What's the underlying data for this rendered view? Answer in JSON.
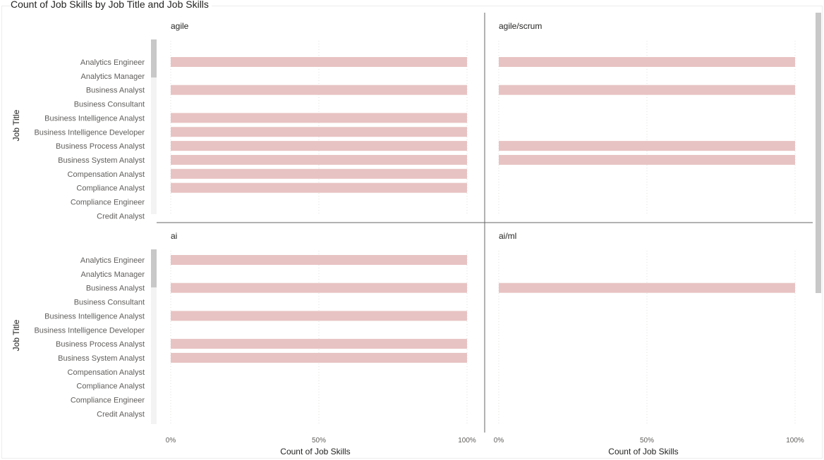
{
  "title": "Count of Job Skills by Job Title and Job Skills",
  "colors": {
    "bar": "#e8c3c3",
    "divider": "#666666",
    "text": "#252423",
    "axis_text": "#605e5c",
    "gridline": "#e1dfdd",
    "scroll_track": "#f3f3f3",
    "scroll_thumb": "#c8c8c8"
  },
  "chart_data": {
    "type": "bar",
    "orientation": "horizontal",
    "layout": "small-multiples-2x2",
    "categories": [
      "Analytics Engineer",
      "Analytics Manager",
      "Business Analyst",
      "Business Consultant",
      "Business Intelligence Analyst",
      "Business Intelligence Developer",
      "Business Process Analyst",
      "Business System Analyst",
      "Compensation Analyst",
      "Compliance Analyst",
      "Compliance Engineer",
      "Credit Analyst"
    ],
    "ylabel": "Job Title",
    "xlabel": "Count of Job Skills",
    "xlim": [
      0,
      1
    ],
    "xticks": [
      "0%",
      "50%",
      "100%"
    ],
    "grid": true,
    "panels": [
      {
        "name": "agile",
        "values": [
          1,
          0,
          1,
          0,
          1,
          1,
          1,
          1,
          1,
          1,
          0,
          0
        ]
      },
      {
        "name": "agile/scrum",
        "values": [
          1,
          0,
          1,
          0,
          0,
          0,
          1,
          1,
          0,
          0,
          0,
          0
        ]
      },
      {
        "name": "ai",
        "values": [
          1,
          0,
          1,
          0,
          1,
          0,
          1,
          1,
          0,
          0,
          0,
          0
        ]
      },
      {
        "name": "ai/ml",
        "values": [
          0,
          0,
          1,
          0,
          0,
          0,
          0,
          0,
          0,
          0,
          0,
          0
        ]
      }
    ]
  }
}
